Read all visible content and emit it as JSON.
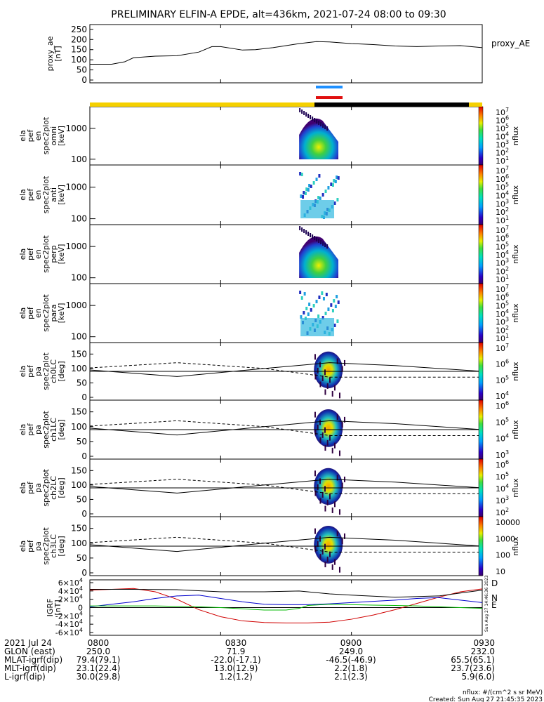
{
  "title": "PRELIMINARY ELFIN-A EPDE, alt=436km, 2021-07-24 08:00 to 09:30",
  "legend_note": "proxy_AE",
  "colors": {
    "sunlight_bar": "#f5d000",
    "eclipse_bar": "#000000",
    "science_zone_blue": "#1e90ff",
    "science_zone_red": "#e01010",
    "igrf_d": "#d00000",
    "igrf_n": "#0000cc",
    "igrf_e": "#00bb00"
  },
  "chart_data": [
    {
      "type": "line",
      "panel": "proxy_ae",
      "ylabel": [
        "proxy_ae",
        "[nT]"
      ],
      "ylim": [
        0,
        260
      ],
      "yticks": [
        "0",
        "50",
        "100",
        "150",
        "200",
        "250"
      ],
      "series_label": "proxy_AE",
      "x_minutes": [
        0,
        5,
        8,
        10,
        15,
        20,
        25,
        28,
        30,
        35,
        38,
        42,
        48,
        52,
        55,
        60,
        65,
        70,
        75,
        80,
        85,
        90
      ],
      "values": [
        78,
        78,
        90,
        110,
        118,
        120,
        138,
        165,
        165,
        148,
        150,
        160,
        180,
        190,
        188,
        180,
        175,
        168,
        165,
        168,
        170,
        160
      ]
    },
    {
      "type": "heatmap",
      "panel": "spectrogram",
      "ylabel": [
        "ela",
        "pef",
        "en",
        "spec2plot",
        "omni",
        "[keV]"
      ],
      "yticks": [
        "100",
        "1000"
      ],
      "cbar_ticks": [
        "10",
        "10",
        "10",
        "10",
        "10",
        "10",
        "10"
      ],
      "cbar_exp": [
        "1",
        "2",
        "3",
        "4",
        "5",
        "6",
        "7"
      ],
      "cbar_label": "nflux"
    },
    {
      "type": "heatmap",
      "panel": "spectrogram",
      "ylabel": [
        "ela",
        "pef",
        "en",
        "spec2plot",
        "anti",
        "[keV]"
      ],
      "yticks": [
        "100",
        "1000"
      ],
      "cbar_ticks": [
        "10",
        "10",
        "10",
        "10",
        "10",
        "10",
        "10"
      ],
      "cbar_exp": [
        "1",
        "2",
        "3",
        "4",
        "5",
        "6",
        "7"
      ],
      "cbar_label": "nflux"
    },
    {
      "type": "heatmap",
      "panel": "spectrogram",
      "ylabel": [
        "ela",
        "pef",
        "en",
        "spec2plot",
        "perp",
        "[keV]"
      ],
      "yticks": [
        "100",
        "1000"
      ],
      "cbar_ticks": [
        "10",
        "10",
        "10",
        "10",
        "10",
        "10",
        "10"
      ],
      "cbar_exp": [
        "1",
        "2",
        "3",
        "4",
        "5",
        "6",
        "7"
      ],
      "cbar_label": "nflux"
    },
    {
      "type": "heatmap",
      "panel": "spectrogram",
      "ylabel": [
        "ela",
        "pef",
        "en",
        "spec2plot",
        "para",
        "[keV]"
      ],
      "yticks": [
        "100",
        "1000"
      ],
      "cbar_ticks": [
        "10",
        "10",
        "10",
        "10",
        "10",
        "10",
        "10"
      ],
      "cbar_exp": [
        "1",
        "2",
        "3",
        "4",
        "5",
        "6",
        "7"
      ],
      "cbar_label": "nflux"
    },
    {
      "type": "heatmap",
      "panel": "pitch",
      "ylabel": [
        "ela",
        "pef",
        "pa",
        "spec2plot",
        "ch0LC",
        "[deg]"
      ],
      "yticks": [
        "0",
        "50",
        "100",
        "150"
      ],
      "cbar_ticks": [
        "10",
        "10",
        "10",
        "10"
      ],
      "cbar_exp": [
        "4",
        "5",
        "6",
        "7"
      ],
      "cbar_label": "nflux"
    },
    {
      "type": "heatmap",
      "panel": "pitch",
      "ylabel": [
        "ela",
        "pef",
        "pa",
        "spec2plot",
        "ch1LC",
        "[deg]"
      ],
      "yticks": [
        "0",
        "50",
        "100",
        "150"
      ],
      "cbar_ticks": [
        "10",
        "10",
        "10",
        "10"
      ],
      "cbar_exp": [
        "3",
        "4",
        "5",
        "6"
      ],
      "cbar_label": "nflux"
    },
    {
      "type": "heatmap",
      "panel": "pitch",
      "ylabel": [
        "ela",
        "pef",
        "pa",
        "spec2plot",
        "ch2LC",
        "[deg]"
      ],
      "yticks": [
        "0",
        "50",
        "100",
        "150"
      ],
      "cbar_ticks": [
        "10",
        "10",
        "10",
        "10",
        "10"
      ],
      "cbar_exp": [
        "2",
        "3",
        "4",
        "5",
        "6"
      ],
      "cbar_label": "nflux"
    },
    {
      "type": "heatmap",
      "panel": "pitch",
      "ylabel": [
        "ela",
        "pef",
        "pa",
        "spec2plot",
        "ch3LC",
        "[deg]"
      ],
      "yticks": [
        "0",
        "50",
        "100",
        "150"
      ],
      "cbar_ticks": [
        "10",
        "100",
        "1000",
        "10000"
      ],
      "cbar_exp": [
        "",
        "",
        "",
        ""
      ],
      "cbar_label": "nflux"
    },
    {
      "type": "line",
      "panel": "igrf",
      "ylabel": [
        "IGRF",
        "[nT]"
      ],
      "ylim": [
        -60000,
        60000
      ],
      "yticks": [
        "-6×10⁴",
        "-4×10⁴",
        "-2×10⁴",
        "0",
        "2×10⁴",
        "4×10⁴",
        "6×10⁴"
      ],
      "yticks_base": [
        "-6×10",
        "-4×10",
        "-2×10",
        "0",
        "2×10",
        "4×10",
        "6×10"
      ],
      "yticks_exp": [
        "4",
        "4",
        "4",
        "",
        "4",
        "4",
        "4"
      ],
      "series": [
        {
          "name": "D",
          "x_minutes": [
            0,
            5,
            10,
            15,
            20,
            25,
            30,
            35,
            40,
            45,
            50,
            55,
            60,
            65,
            70,
            75,
            80,
            85,
            90
          ],
          "values": [
            42000,
            44000,
            46000,
            38000,
            20000,
            -5000,
            -22000,
            -32000,
            -36000,
            -37000,
            -37000,
            -35000,
            -28000,
            -18000,
            -5000,
            10000,
            25000,
            38000,
            45000
          ]
        },
        {
          "name": "N",
          "x_minutes": [
            0,
            5,
            10,
            15,
            20,
            25,
            30,
            35,
            40,
            45,
            50,
            55,
            60,
            65,
            70,
            75,
            80,
            85,
            90
          ],
          "values": [
            2000,
            8000,
            14000,
            22000,
            28000,
            30000,
            22000,
            14000,
            8000,
            7000,
            7000,
            9000,
            12000,
            15000,
            18000,
            22000,
            24000,
            18000,
            12000
          ]
        },
        {
          "name": "E",
          "x_minutes": [
            0,
            5,
            10,
            15,
            20,
            25,
            30,
            35,
            40,
            45,
            48,
            50,
            55,
            60,
            65,
            70,
            75,
            80,
            85,
            90
          ],
          "values": [
            4000,
            4000,
            4000,
            4000,
            3000,
            2000,
            0,
            -3000,
            -6000,
            -6000,
            -2000,
            5000,
            8000,
            7000,
            6000,
            5000,
            4000,
            2000,
            0,
            -2000
          ]
        },
        {
          "name": "",
          "x_minutes": [
            0,
            10,
            20,
            30,
            40,
            48,
            55,
            60,
            70,
            80,
            85,
            90
          ],
          "values": [
            44000,
            44000,
            43000,
            38000,
            38000,
            40000,
            33000,
            30000,
            25000,
            28000,
            35000,
            42000
          ]
        }
      ]
    }
  ],
  "xaxis": {
    "ticks": [
      "0800",
      "0830",
      "0900",
      "0930"
    ],
    "rows": [
      {
        "label": "2021 Jul 24",
        "values": [
          "0800",
          "0830",
          "0900",
          "0930"
        ]
      },
      {
        "label": "GLON (east)",
        "values": [
          "250.0",
          "71.9",
          "249.0",
          "232.0"
        ]
      },
      {
        "label": "MLAT-igrf(dip)",
        "values": [
          "79.4(79.1)",
          "-22.0(-17.1)",
          "-46.5(-46.9)",
          "65.5(65.1)"
        ]
      },
      {
        "label": "MLT-igrf(dip)",
        "values": [
          "23.1(22.4)",
          "13.0(12.9)",
          "2.2(1.8)",
          "23.7(23.6)"
        ]
      },
      {
        "label": "L-igrf(dip)",
        "values": [
          "30.0(29.8)",
          "1.2(1.2)",
          "2.1(2.3)",
          "5.9(6.0)"
        ]
      }
    ]
  },
  "footer": {
    "units": "nflux: #/(cm^2 s sr MeV)",
    "created": "Created: Sun Aug 27 21:45:35 2023",
    "side_stamp": "Sun Aug 27 14:46:36 2023"
  }
}
